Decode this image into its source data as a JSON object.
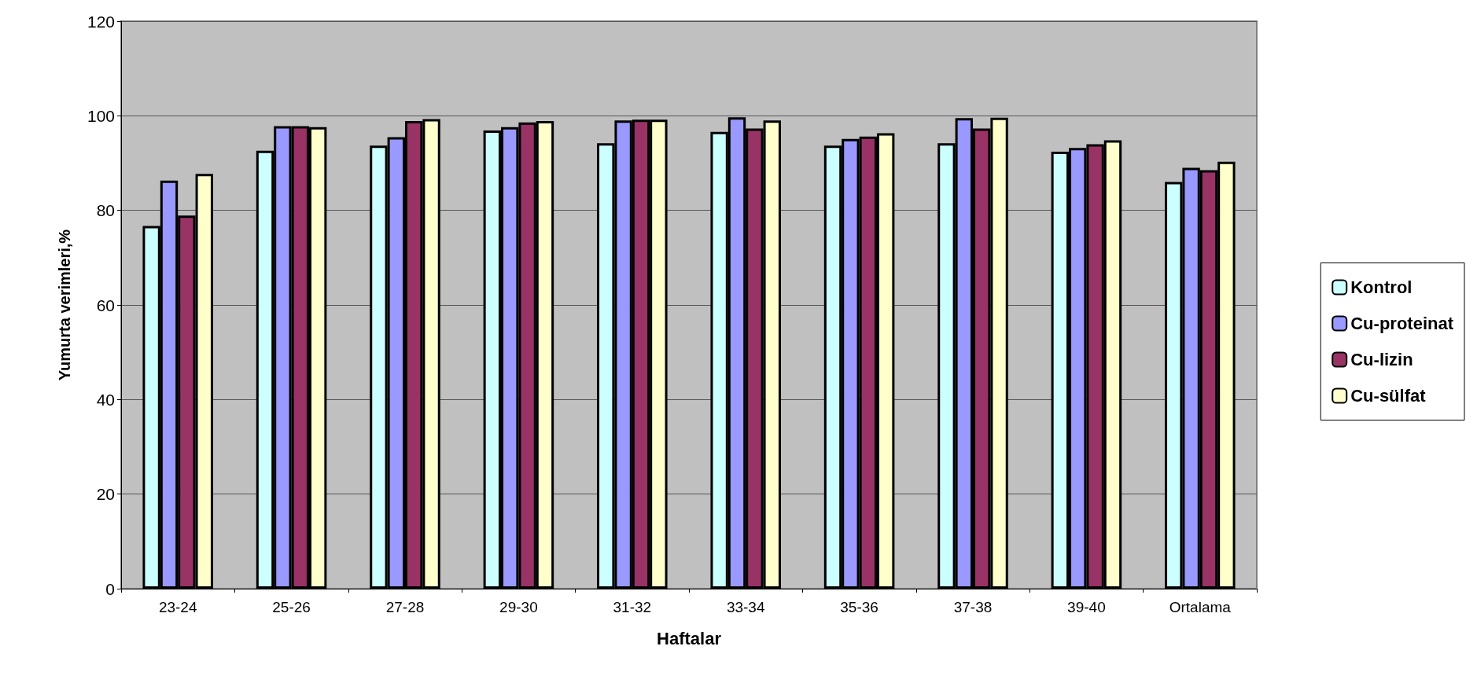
{
  "chart_data": {
    "type": "bar",
    "xlabel": "Haftalar",
    "ylabel": "Yumurta verimleri,%",
    "categories": [
      "23-24",
      "25-26",
      "27-28",
      "29-30",
      "31-32",
      "33-34",
      "35-36",
      "37-38",
      "39-40",
      "Ortalama"
    ],
    "series": [
      {
        "name": "Kontrol",
        "color": "#ccffff",
        "values": [
          76.7,
          92.6,
          93.7,
          96.9,
          94.2,
          96.6,
          93.7,
          94.2,
          92.4,
          86
        ]
      },
      {
        "name": "Cu-proteinat",
        "color": "#9999ff",
        "values": [
          86.3,
          97.8,
          95.5,
          97.6,
          99,
          99.7,
          95.1,
          99.5,
          93.2,
          89
        ]
      },
      {
        "name": "Cu-lizin",
        "color": "#993366",
        "values": [
          78.9,
          97.8,
          98.9,
          98.6,
          99.2,
          97.3,
          95.6,
          97.3,
          94,
          88.5
        ]
      },
      {
        "name": "Cu-sülfat",
        "color": "#ffffcc",
        "values": [
          87.7,
          97.6,
          99.3,
          98.9,
          99.2,
          99,
          96.3,
          99.6,
          94.8,
          90.3
        ]
      }
    ],
    "ylim": [
      0,
      120
    ],
    "yticks": [
      0,
      20,
      40,
      60,
      80,
      100,
      120
    ],
    "grid": "y",
    "legend": "right"
  }
}
